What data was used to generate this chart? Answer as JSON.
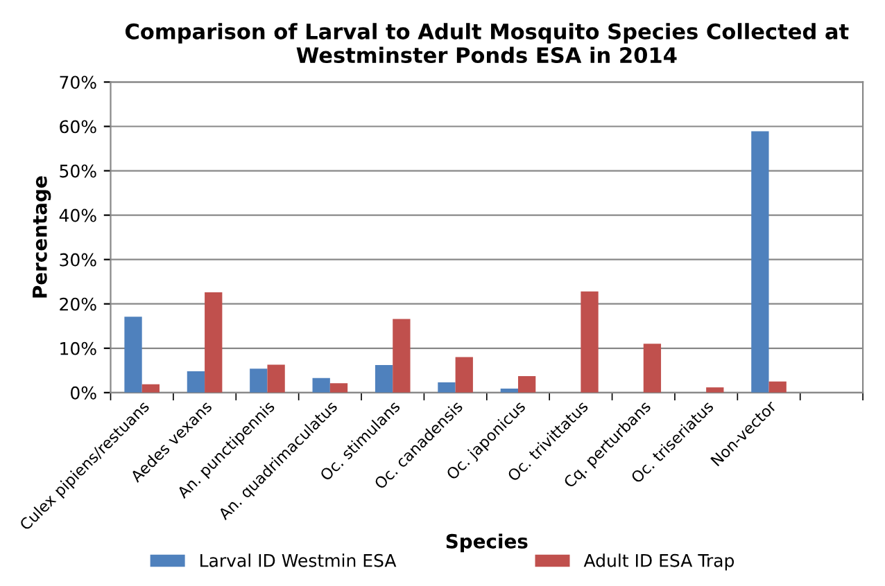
{
  "chart_data": {
    "type": "bar",
    "title": "Comparison of Larval to Adult Mosquito Species Collected at\nWestminster Ponds ESA in 2014",
    "xlabel": "Species",
    "ylabel": "Percentage",
    "categories": [
      "Culex pipiens/restuans",
      "Aedes vexans",
      "An. punctipennis",
      "An. quadrimaculatus",
      "Oc. stimulans",
      "Oc. canadensis",
      "Oc. japonicus",
      "Oc. trivittatus",
      "Cq. perturbans",
      "Oc. triseriatus",
      "Non-vector",
      null
    ],
    "series": [
      {
        "name": "Larval ID Westmin ESA",
        "color": "#4f81bd",
        "values": [
          17.1,
          4.8,
          5.4,
          3.3,
          6.2,
          2.3,
          0.9,
          0,
          0,
          0,
          58.9,
          null
        ]
      },
      {
        "name": "Adult ID ESA Trap",
        "color": "#c0504d",
        "values": [
          1.9,
          22.6,
          6.3,
          2.1,
          16.6,
          8.0,
          3.7,
          22.8,
          11.0,
          1.2,
          2.5,
          null
        ]
      }
    ],
    "ylim": [
      0,
      70
    ],
    "yticks": [
      {
        "value": 0,
        "label": "0%"
      },
      {
        "value": 10,
        "label": "10%"
      },
      {
        "value": 20,
        "label": "20%"
      },
      {
        "value": 30,
        "label": "30%"
      },
      {
        "value": 40,
        "label": "40%"
      },
      {
        "value": 50,
        "label": "50%"
      },
      {
        "value": 60,
        "label": "60%"
      },
      {
        "value": 70,
        "label": "70%"
      }
    ],
    "grid": "y",
    "legend": "bottom"
  }
}
